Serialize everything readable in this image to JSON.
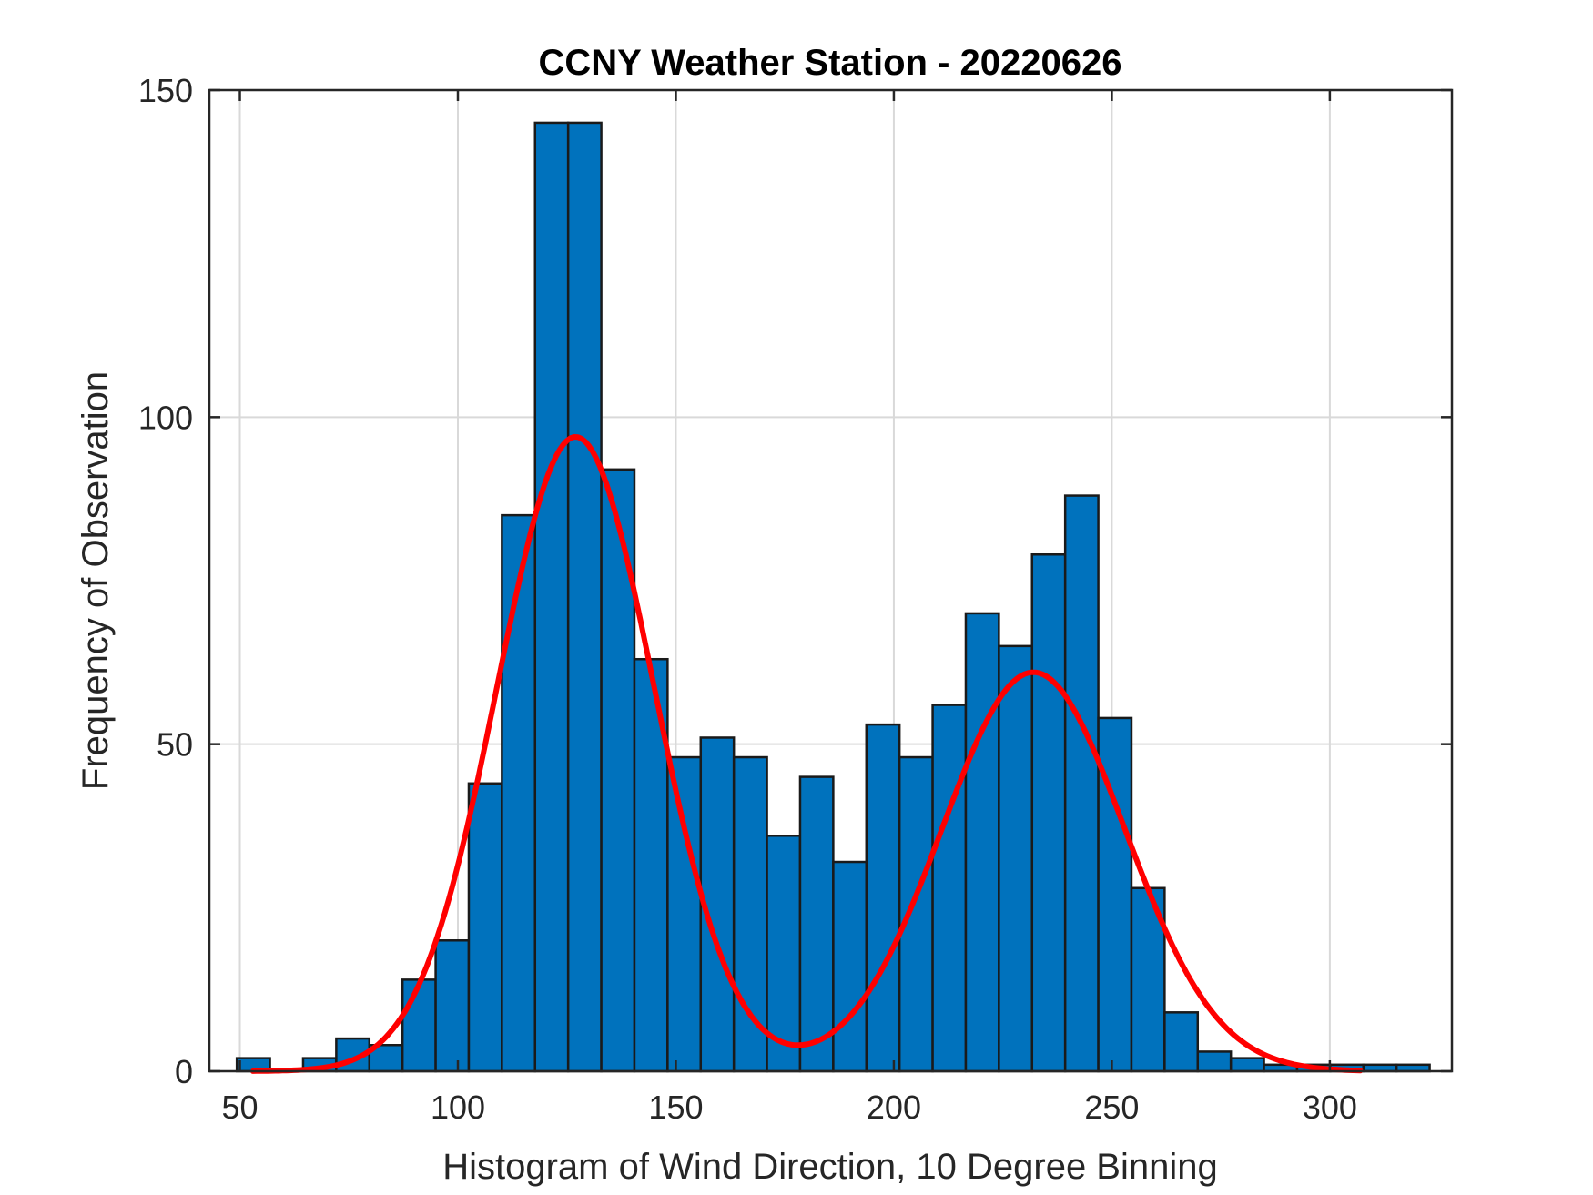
{
  "chart_data": {
    "type": "bar",
    "title": "CCNY Weather Station - 20220626",
    "xlabel": "Histogram of Wind Direction, 10 Degree Binning",
    "ylabel": "Frequency of Observation",
    "xlim": [
      43,
      328
    ],
    "ylim": [
      0,
      150
    ],
    "xticks": [
      50,
      100,
      150,
      200,
      250,
      300
    ],
    "yticks": [
      0,
      50,
      100,
      150
    ],
    "grid": true,
    "bin_width": 7.6,
    "bins": [
      {
        "x": 49.3,
        "value": 2
      },
      {
        "x": 64.5,
        "value": 2
      },
      {
        "x": 72.1,
        "value": 5
      },
      {
        "x": 79.7,
        "value": 4
      },
      {
        "x": 87.3,
        "value": 14
      },
      {
        "x": 94.9,
        "value": 20
      },
      {
        "x": 102.5,
        "value": 44
      },
      {
        "x": 110.1,
        "value": 85
      },
      {
        "x": 117.7,
        "value": 145
      },
      {
        "x": 125.3,
        "value": 145
      },
      {
        "x": 132.9,
        "value": 92
      },
      {
        "x": 140.5,
        "value": 63
      },
      {
        "x": 148.1,
        "value": 48
      },
      {
        "x": 155.7,
        "value": 51
      },
      {
        "x": 163.3,
        "value": 48
      },
      {
        "x": 170.9,
        "value": 36
      },
      {
        "x": 178.5,
        "value": 45
      },
      {
        "x": 186.1,
        "value": 32
      },
      {
        "x": 193.7,
        "value": 53
      },
      {
        "x": 201.3,
        "value": 48
      },
      {
        "x": 208.9,
        "value": 56
      },
      {
        "x": 216.5,
        "value": 70
      },
      {
        "x": 224.1,
        "value": 65
      },
      {
        "x": 231.7,
        "value": 79
      },
      {
        "x": 239.3,
        "value": 88
      },
      {
        "x": 246.9,
        "value": 54
      },
      {
        "x": 254.5,
        "value": 28
      },
      {
        "x": 262.1,
        "value": 9
      },
      {
        "x": 269.7,
        "value": 3
      },
      {
        "x": 277.3,
        "value": 2
      },
      {
        "x": 284.9,
        "value": 1
      },
      {
        "x": 292.5,
        "value": 1
      },
      {
        "x": 300.1,
        "value": 1
      },
      {
        "x": 307.7,
        "value": 1
      },
      {
        "x": 315.3,
        "value": 1
      }
    ],
    "fit_curve": {
      "x_range": [
        53,
        307
      ],
      "components": [
        {
          "amplitude": 97,
          "mean": 127,
          "sigma": 18
        },
        {
          "amplitude": 61,
          "mean": 232,
          "sigma": 21
        }
      ]
    },
    "colors": {
      "bar": "#0072BD",
      "fit": "#FF0000"
    }
  }
}
